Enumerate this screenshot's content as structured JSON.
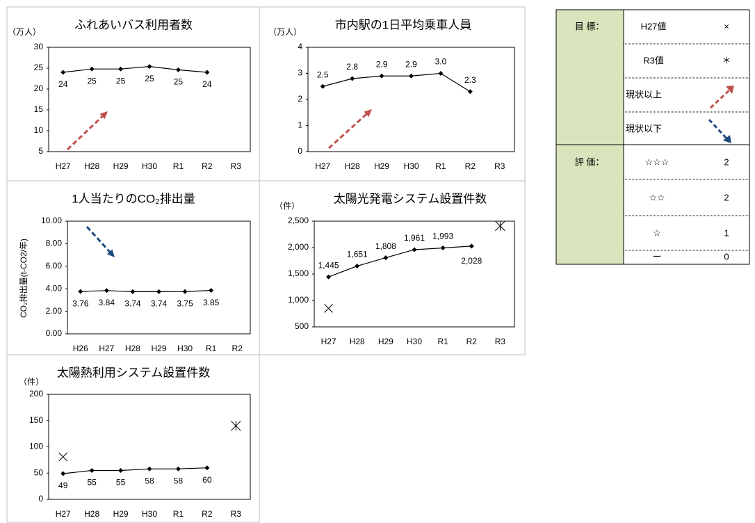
{
  "chart_data": [
    {
      "type": "line",
      "title": "ふれあいバス利用者数",
      "y_unit": "（万人）",
      "categories": [
        "H27",
        "H28",
        "H29",
        "H30",
        "R1",
        "R2",
        "R3"
      ],
      "values": [
        24.0,
        24.8,
        24.8,
        25.4,
        24.6,
        24.0,
        null
      ],
      "value_labels": [
        "24",
        "25",
        "25",
        "25",
        "25",
        "24",
        null
      ],
      "ylim": [
        5,
        30
      ],
      "yticks": [
        5,
        10,
        15,
        20,
        25,
        30
      ],
      "color": "#000000",
      "trend_arrow": "up"
    },
    {
      "type": "line",
      "title": "市内駅の1日平均乗車人員",
      "y_unit": "（万人）",
      "categories": [
        "H27",
        "H28",
        "H29",
        "H30",
        "R1",
        "R2",
        "R3"
      ],
      "values": [
        2.5,
        2.8,
        2.9,
        2.9,
        3.0,
        2.3,
        null
      ],
      "value_labels": [
        "2.5",
        "2.8",
        "2.9",
        "2.9",
        "3.0",
        "2.3",
        null
      ],
      "ylim": [
        0,
        4
      ],
      "yticks": [
        0,
        1,
        2,
        3,
        4
      ],
      "color": "#000000",
      "trend_arrow": "up"
    },
    {
      "type": "line",
      "title": "1人当たりのCO₂排出量",
      "y_label": "CO₂排出量(t-CO2/年)",
      "categories": [
        "H26",
        "H27",
        "H28",
        "H29",
        "H30",
        "R1",
        "R2"
      ],
      "values": [
        3.76,
        3.84,
        3.74,
        3.74,
        3.75,
        3.85,
        null
      ],
      "ylim": [
        0,
        10
      ],
      "yticks": [
        {
          "value": 0,
          "label": "0.00"
        },
        {
          "value": 2,
          "label": "2.00"
        },
        {
          "value": 4,
          "label": "4.00"
        },
        {
          "value": 6,
          "label": "6.00"
        },
        {
          "value": 8,
          "label": "8.00"
        },
        {
          "value": 10,
          "label": "10.00"
        }
      ],
      "color": "#000000",
      "trend_arrow": "down"
    },
    {
      "type": "line",
      "title": "太陽光発電システム設置件数",
      "y_unit": "（件）",
      "categories": [
        "H27",
        "H28",
        "H29",
        "H30",
        "R1",
        "R2",
        "R3"
      ],
      "values": [
        1445,
        1651,
        1808,
        1961,
        1993,
        2028,
        null
      ],
      "value_labels": [
        "1,445",
        "1,651",
        "1,808",
        "1,961",
        "1,993",
        "2,028",
        null
      ],
      "h27_value": 850,
      "r3_value": 2410,
      "ylim": [
        500,
        2500
      ],
      "yticks": [
        500,
        {
          "value": 1000,
          "label": "1,000"
        },
        {
          "value": 1500,
          "label": "1,500"
        },
        {
          "value": 2000,
          "label": "2,000"
        },
        {
          "value": 2500,
          "label": "2,500"
        }
      ],
      "color": "#000000"
    },
    {
      "type": "line",
      "title": "太陽熱利用システム設置件数",
      "y_unit": "（件）",
      "categories": [
        "H27",
        "H28",
        "H29",
        "H30",
        "R1",
        "R2",
        "R3"
      ],
      "values": [
        49,
        55,
        55,
        58,
        58,
        60,
        null
      ],
      "h27_value": 81,
      "r3_value": 140,
      "ylim": [
        0,
        200
      ],
      "yticks": [
        0,
        50,
        100,
        150,
        200
      ],
      "color": "#000000"
    }
  ],
  "legend_table": {
    "target": {
      "label": "目 標：",
      "items": [
        {
          "name": "H27値",
          "symbol": "×"
        },
        {
          "name": "R3値",
          "symbol": "＊"
        },
        {
          "name": "現状以上"
        },
        {
          "name": "現状以下"
        }
      ]
    },
    "evaluation": {
      "label": "評 価：",
      "items": [
        {
          "rating": "☆☆☆",
          "count": 2
        },
        {
          "rating": "☆☆",
          "count": 2
        },
        {
          "rating": "☆",
          "count": 1
        },
        {
          "rating": "ー",
          "count": 0
        }
      ]
    }
  }
}
